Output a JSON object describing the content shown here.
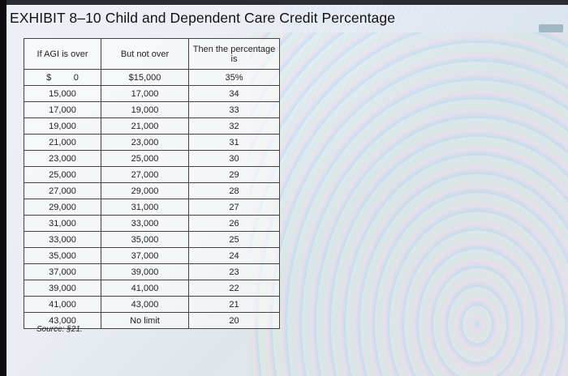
{
  "title": "EXHIBIT 8–10 Child and Dependent Care Credit Percentage",
  "columns": [
    "If AGI is over",
    "But not over",
    "Then the percentage is"
  ],
  "rows": [
    {
      "over": "$         0",
      "not_over": "$15,000",
      "pct": "35%"
    },
    {
      "over": "15,000",
      "not_over": "17,000",
      "pct": "34"
    },
    {
      "over": "17,000",
      "not_over": "19,000",
      "pct": "33"
    },
    {
      "over": "19,000",
      "not_over": "21,000",
      "pct": "32"
    },
    {
      "over": "21,000",
      "not_over": "23,000",
      "pct": "31"
    },
    {
      "over": "23,000",
      "not_over": "25,000",
      "pct": "30"
    },
    {
      "over": "25,000",
      "not_over": "27,000",
      "pct": "29"
    },
    {
      "over": "27,000",
      "not_over": "29,000",
      "pct": "28"
    },
    {
      "over": "29,000",
      "not_over": "31,000",
      "pct": "27"
    },
    {
      "over": "31,000",
      "not_over": "33,000",
      "pct": "26"
    },
    {
      "over": "33,000",
      "not_over": "35,000",
      "pct": "25"
    },
    {
      "over": "35,000",
      "not_over": "37,000",
      "pct": "24"
    },
    {
      "over": "37,000",
      "not_over": "39,000",
      "pct": "23"
    },
    {
      "over": "39,000",
      "not_over": "41,000",
      "pct": "22"
    },
    {
      "over": "41,000",
      "not_over": "43,000",
      "pct": "21"
    },
    {
      "over": "43,000",
      "not_over": "No limit",
      "pct": "20"
    }
  ],
  "source": "Source: §21."
}
